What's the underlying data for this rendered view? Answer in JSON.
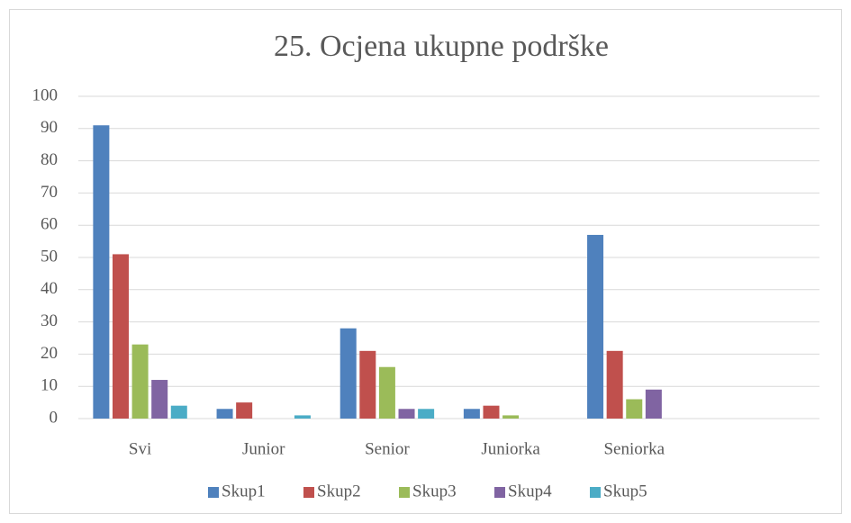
{
  "chart_data": {
    "type": "bar",
    "title": "25. Ocjena ukupne podrške",
    "categories": [
      "Svi",
      "Junior",
      "Senior",
      "Juniorka",
      "Seniorka",
      null
    ],
    "series": [
      {
        "name": "Skup1",
        "color": "#4f81bd",
        "values": [
          91,
          3,
          28,
          3,
          57,
          null
        ]
      },
      {
        "name": "Skup2",
        "color": "#c0504d",
        "values": [
          51,
          5,
          21,
          4,
          21,
          null
        ]
      },
      {
        "name": "Skup3",
        "color": "#9bbb59",
        "values": [
          23,
          0,
          16,
          1,
          6,
          null
        ]
      },
      {
        "name": "Skup4",
        "color": "#8064a2",
        "values": [
          12,
          0,
          3,
          0,
          9,
          null
        ]
      },
      {
        "name": "Skup5",
        "color": "#4bacc6",
        "values": [
          4,
          1,
          3,
          0,
          0,
          null
        ]
      }
    ],
    "ylim": [
      0,
      100
    ],
    "yticks": [
      0,
      10,
      20,
      30,
      40,
      50,
      60,
      70,
      80,
      90,
      100
    ],
    "grid": true,
    "legend": "bottom"
  }
}
